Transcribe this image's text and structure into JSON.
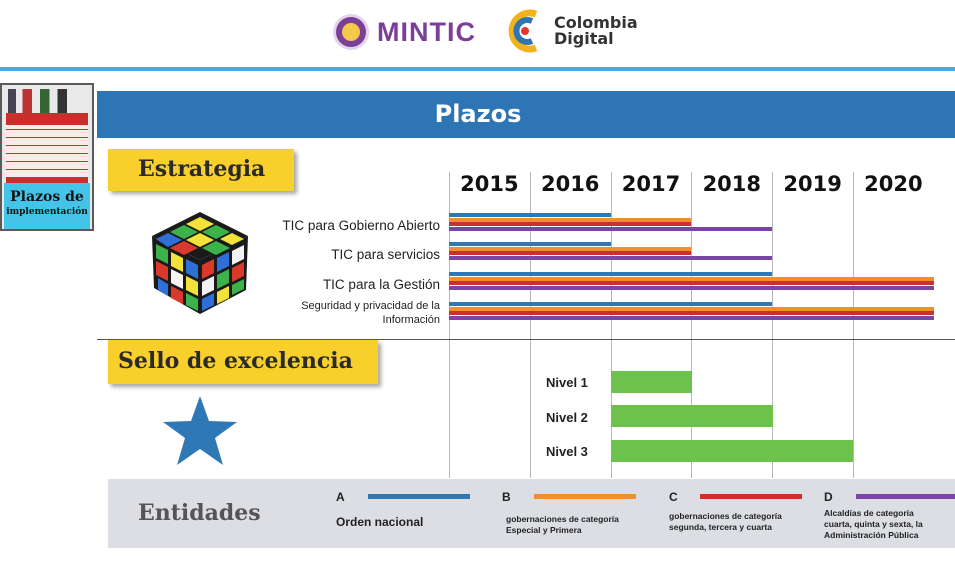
{
  "header": {
    "logos": [
      {
        "text": "MINTIC",
        "color": "#7b3f98"
      },
      {
        "text_line1": "Colombia",
        "text_line2": "Digital"
      }
    ]
  },
  "thumbnail": {
    "label_line1": "Plazos de",
    "label_line2": "implementación"
  },
  "title": "Plazos",
  "sections": {
    "strategy": "Estrategia",
    "seal": "Sello de excelencia"
  },
  "years": [
    "2015",
    "2016",
    "2017",
    "2018",
    "2019",
    "2020"
  ],
  "strategies": [
    {
      "label": "TIC para Gobierno Abierto",
      "end_year": {
        "A": 2016,
        "B": 2017,
        "C": 2017,
        "D": 2018
      }
    },
    {
      "label": "TIC para servicios",
      "end_year": {
        "A": 2016,
        "B": 2017,
        "C": 2017,
        "D": 2018
      }
    },
    {
      "label": "TIC para la Gestión",
      "end_year": {
        "A": 2018,
        "B": 2020,
        "C": 2020,
        "D": 2020
      }
    },
    {
      "label_line1": "Seguridad y privacidad de la",
      "label_line2": "Información",
      "end_year": {
        "A": 2018,
        "B": 2020,
        "C": 2020,
        "D": 2020
      }
    }
  ],
  "seal_levels": [
    {
      "label": "Nivel 1",
      "start_year": 2017,
      "end_year": 2017
    },
    {
      "label": "Nivel 2",
      "start_year": 2017,
      "end_year": 2018
    },
    {
      "label": "Nivel 3",
      "start_year": 2017,
      "end_year": 2019
    }
  ],
  "legend": {
    "title": "Entidades",
    "items": [
      {
        "key": "A",
        "color": "#2f78b6",
        "text_line1": "Orden nacional"
      },
      {
        "key": "B",
        "color": "#f48d2b",
        "text_line1": "gobernaciones de categoría",
        "text_line2": "Especial y Primera"
      },
      {
        "key": "C",
        "color": "#c8322a",
        "text_line1": "gobernaciones de categoría",
        "text_line2": "segunda, tercera y cuarta"
      },
      {
        "key": "D",
        "color": "#7b45a8",
        "text_line1": "Alcaldías de categoría",
        "text_line2": "cuarta, quinta y sexta, la",
        "text_line3": "Administración Pública"
      }
    ]
  },
  "colors": {
    "title_bar": "#2e75b6",
    "section_label": "#f8cf2b",
    "level_bar": "#6cc24a",
    "legend_bg": "#dcdee3"
  }
}
